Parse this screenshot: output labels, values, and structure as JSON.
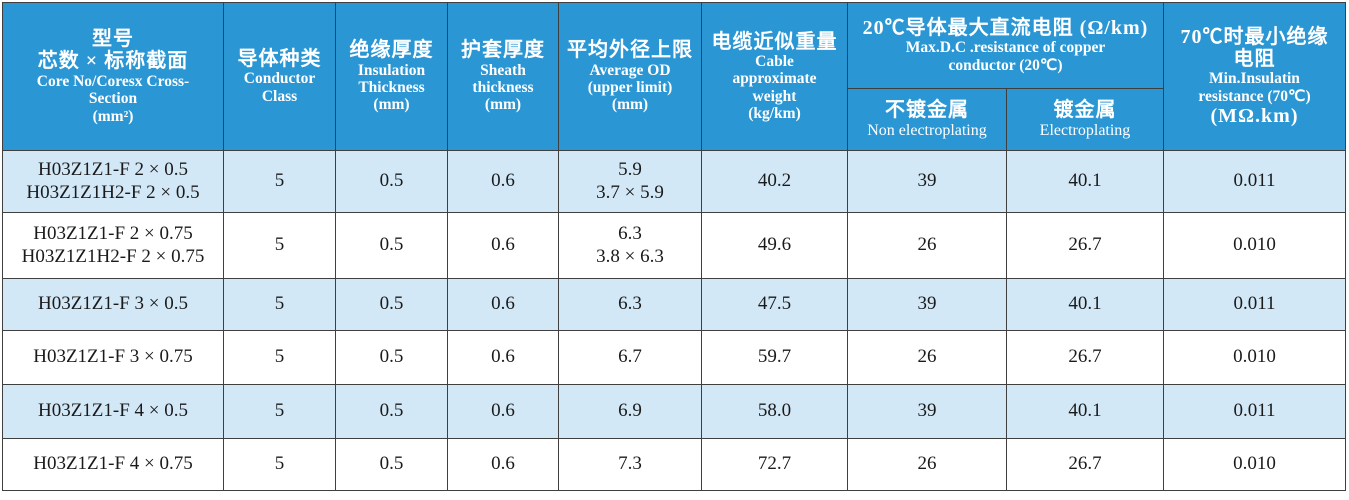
{
  "table": {
    "headers": {
      "model": {
        "zh1": "型号",
        "zh2": "芯数 × 标称截面",
        "en1": "Core No/Coresx Cross-",
        "en2": "Section",
        "unit": "(mm²)"
      },
      "conductor_class": {
        "zh": "导体种类",
        "en1": "Conductor",
        "en2": "Class"
      },
      "insulation": {
        "zh": "绝缘厚度",
        "en1": "Insulation",
        "en2": "Thickness",
        "unit": "(mm)"
      },
      "sheath": {
        "zh": "护套厚度",
        "en1": "Sheath",
        "en2": "thickness",
        "unit": "(mm)"
      },
      "average_od": {
        "zh": "平均外径上限",
        "en1": "Average OD",
        "en2": "(upper limit)",
        "unit": "(mm)"
      },
      "weight": {
        "zh": "电缆近似重量",
        "en1": "Cable",
        "en2": "approximate",
        "en3": "weight",
        "unit": "(kg/km)"
      },
      "resistance": {
        "zh": "20℃导体最大直流电阻 (Ω/km)",
        "en1": "Max.D.C .resistance of copper",
        "en2": "conductor (20℃)",
        "non_plating_zh": "不镀金属",
        "non_plating_en": "Non electroplating",
        "plating_zh": "镀金属",
        "plating_en": "Electroplating"
      },
      "insulation_resistance": {
        "zh1": "70℃时最小绝缘",
        "zh2": "电阻",
        "en1": "Min.Insulatin",
        "en2": "resistance (70℃)",
        "unit": "(MΩ.km)"
      }
    },
    "rows": [
      {
        "model": [
          "H03Z1Z1-F 2 × 0.5",
          "H03Z1Z1H2-F 2 × 0.5"
        ],
        "class": "5",
        "insulation": "0.5",
        "sheath": "0.6",
        "od": [
          "5.9",
          "3.7 × 5.9"
        ],
        "weight": "40.2",
        "res_non": "39",
        "res_plated": "40.1",
        "ins_res": "0.011"
      },
      {
        "model": [
          "H03Z1Z1-F 2 × 0.75",
          "H03Z1Z1H2-F 2 × 0.75"
        ],
        "class": "5",
        "insulation": "0.5",
        "sheath": "0.6",
        "od": [
          "6.3",
          "3.8 × 6.3"
        ],
        "weight": "49.6",
        "res_non": "26",
        "res_plated": "26.7",
        "ins_res": "0.010"
      },
      {
        "model": [
          "H03Z1Z1-F 3 × 0.5"
        ],
        "class": "5",
        "insulation": "0.5",
        "sheath": "0.6",
        "od": [
          "6.3"
        ],
        "weight": "47.5",
        "res_non": "39",
        "res_plated": "40.1",
        "ins_res": "0.011"
      },
      {
        "model": [
          "H03Z1Z1-F 3 × 0.75"
        ],
        "class": "5",
        "insulation": "0.5",
        "sheath": "0.6",
        "od": [
          "6.7"
        ],
        "weight": "59.7",
        "res_non": "26",
        "res_plated": "26.7",
        "ins_res": "0.010"
      },
      {
        "model": [
          "H03Z1Z1-F 4 × 0.5"
        ],
        "class": "5",
        "insulation": "0.5",
        "sheath": "0.6",
        "od": [
          "6.9"
        ],
        "weight": "58.0",
        "res_non": "39",
        "res_plated": "40.1",
        "ins_res": "0.011"
      },
      {
        "model": [
          "H03Z1Z1-F 4 × 0.75"
        ],
        "class": "5",
        "insulation": "0.5",
        "sheath": "0.6",
        "od": [
          "7.3"
        ],
        "weight": "72.7",
        "res_non": "26",
        "res_plated": "26.7",
        "ins_res": "0.010"
      }
    ]
  },
  "colors": {
    "header_bg": "#2a96d4",
    "header_text": "#ffffff",
    "row_shade": "#d3e8f7",
    "row_plain": "#ffffff",
    "border": "#3f3f3f"
  }
}
